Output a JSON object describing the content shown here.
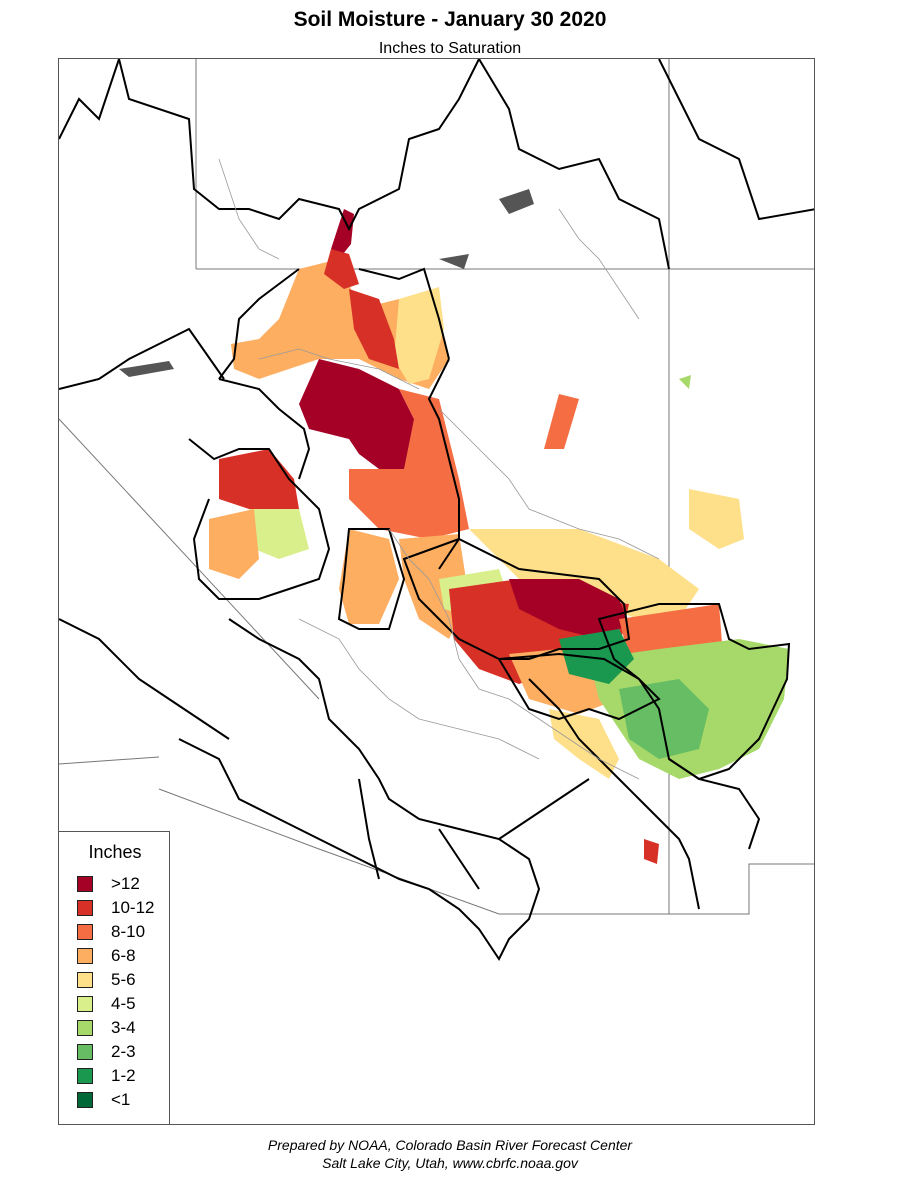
{
  "title": "Soil Moisture - January 30 2020",
  "subtitle": "Inches to Saturation",
  "legend": {
    "title": "Inches",
    "items": [
      {
        "label": ">12",
        "color": "#a50026"
      },
      {
        "label": "10-12",
        "color": "#d73027"
      },
      {
        "label": "8-10",
        "color": "#f46d43"
      },
      {
        "label": "6-8",
        "color": "#fdae61"
      },
      {
        "label": "5-6",
        "color": "#fee08b"
      },
      {
        "label": "4-5",
        "color": "#d9ef8b"
      },
      {
        "label": "3-4",
        "color": "#a6d96a"
      },
      {
        "label": "2-3",
        "color": "#66bd63"
      },
      {
        "label": "1-2",
        "color": "#1a9850"
      },
      {
        "label": "<1",
        "color": "#006837"
      }
    ]
  },
  "credit": {
    "line1": "Prepared by NOAA, Colorado Basin River Forecast Center",
    "line2": "Salt Lake City, Utah, www.cbrfc.noaa.gov"
  }
}
